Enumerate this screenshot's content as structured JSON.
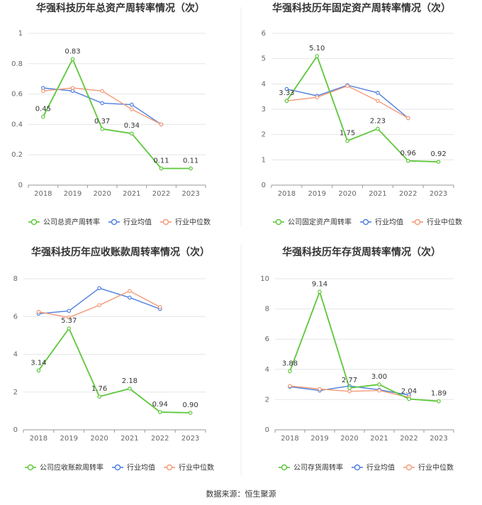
{
  "source_label": "数据来源：恒生聚源",
  "colors": {
    "company": "#5dc73a",
    "industry_avg": "#4e7fe0",
    "industry_median": "#f39a78"
  },
  "chart_data": [
    {
      "type": "line",
      "title": "华强科技历年总资产周转率情况（次）",
      "categories": [
        "2018",
        "2019",
        "2020",
        "2021",
        "2022",
        "2023"
      ],
      "ylim": [
        0,
        1
      ],
      "yticks": [
        "0",
        "0.2",
        "0.4",
        "0.6",
        "0.8",
        "1"
      ],
      "ytick_values": [
        0,
        0.2,
        0.4,
        0.6,
        0.8,
        1
      ],
      "grid": true,
      "legend": "bottom",
      "series": [
        {
          "name": "公司总资产周转率",
          "role": "company",
          "values": [
            0.45,
            0.83,
            0.37,
            0.34,
            0.11,
            0.11
          ],
          "labels": [
            "0.45",
            "0.83",
            "0.37",
            "0.34",
            "0.11",
            "0.11"
          ]
        },
        {
          "name": "行业均值",
          "role": "industry_avg",
          "values": [
            0.64,
            0.62,
            0.54,
            0.53,
            0.4,
            null
          ]
        },
        {
          "name": "行业中位数",
          "role": "industry_median",
          "values": [
            0.62,
            0.64,
            0.62,
            0.5,
            0.4,
            null
          ]
        }
      ]
    },
    {
      "type": "line",
      "title": "华强科技历年固定资产周转率情况（次）",
      "categories": [
        "2018",
        "2019",
        "2020",
        "2021",
        "2022",
        "2023"
      ],
      "ylim": [
        0,
        6
      ],
      "yticks": [
        "0",
        "1",
        "2",
        "3",
        "4",
        "5",
        "6"
      ],
      "ytick_values": [
        0,
        1,
        2,
        3,
        4,
        5,
        6
      ],
      "grid": true,
      "legend": "bottom",
      "series": [
        {
          "name": "公司固定资产周转率",
          "role": "company",
          "values": [
            3.33,
            5.1,
            1.75,
            2.23,
            0.96,
            0.92
          ],
          "labels": [
            "3.33",
            "5.10",
            "1.75",
            "2.23",
            "0.96",
            "0.92"
          ]
        },
        {
          "name": "行业均值",
          "role": "industry_avg",
          "values": [
            3.8,
            3.53,
            3.95,
            3.65,
            2.65,
            null
          ]
        },
        {
          "name": "行业中位数",
          "role": "industry_median",
          "values": [
            3.33,
            3.47,
            3.92,
            3.33,
            2.65,
            null
          ]
        }
      ]
    },
    {
      "type": "line",
      "title": "华强科技历年应收账款周转率情况（次）",
      "categories": [
        "2018",
        "2019",
        "2020",
        "2021",
        "2022",
        "2023"
      ],
      "ylim": [
        0,
        8
      ],
      "yticks": [
        "0",
        "2",
        "4",
        "6",
        "8"
      ],
      "ytick_values": [
        0,
        2,
        4,
        6,
        8
      ],
      "grid": true,
      "legend": "bottom",
      "series": [
        {
          "name": "公司应收账款周转率",
          "role": "company",
          "values": [
            3.14,
            5.37,
            1.76,
            2.18,
            0.94,
            0.9
          ],
          "labels": [
            "3.14",
            "5.37",
            "1.76",
            "2.18",
            "0.94",
            "0.90"
          ]
        },
        {
          "name": "行业均值",
          "role": "industry_avg",
          "values": [
            6.15,
            6.3,
            7.5,
            7.0,
            6.4,
            null
          ]
        },
        {
          "name": "行业中位数",
          "role": "industry_median",
          "values": [
            6.25,
            5.95,
            6.6,
            7.35,
            6.5,
            null
          ]
        }
      ]
    },
    {
      "type": "line",
      "title": "华强科技历年存货周转率情况（次）",
      "categories": [
        "2018",
        "2019",
        "2020",
        "2021",
        "2022",
        "2023"
      ],
      "ylim": [
        0,
        10
      ],
      "yticks": [
        "0",
        "2",
        "4",
        "6",
        "8",
        "10"
      ],
      "ytick_values": [
        0,
        2,
        4,
        6,
        8,
        10
      ],
      "grid": true,
      "legend": "bottom",
      "series": [
        {
          "name": "公司存货周转率",
          "role": "company",
          "values": [
            3.88,
            9.14,
            2.77,
            3.0,
            2.04,
            1.89
          ],
          "labels": [
            "3.88",
            "9.14",
            "2.77",
            "3.00",
            "2.04",
            "1.89"
          ]
        },
        {
          "name": "行业均值",
          "role": "industry_avg",
          "values": [
            2.85,
            2.6,
            2.9,
            2.65,
            2.3,
            null
          ]
        },
        {
          "name": "行业中位数",
          "role": "industry_median",
          "values": [
            2.9,
            2.7,
            2.55,
            2.6,
            2.15,
            null
          ]
        }
      ]
    }
  ]
}
